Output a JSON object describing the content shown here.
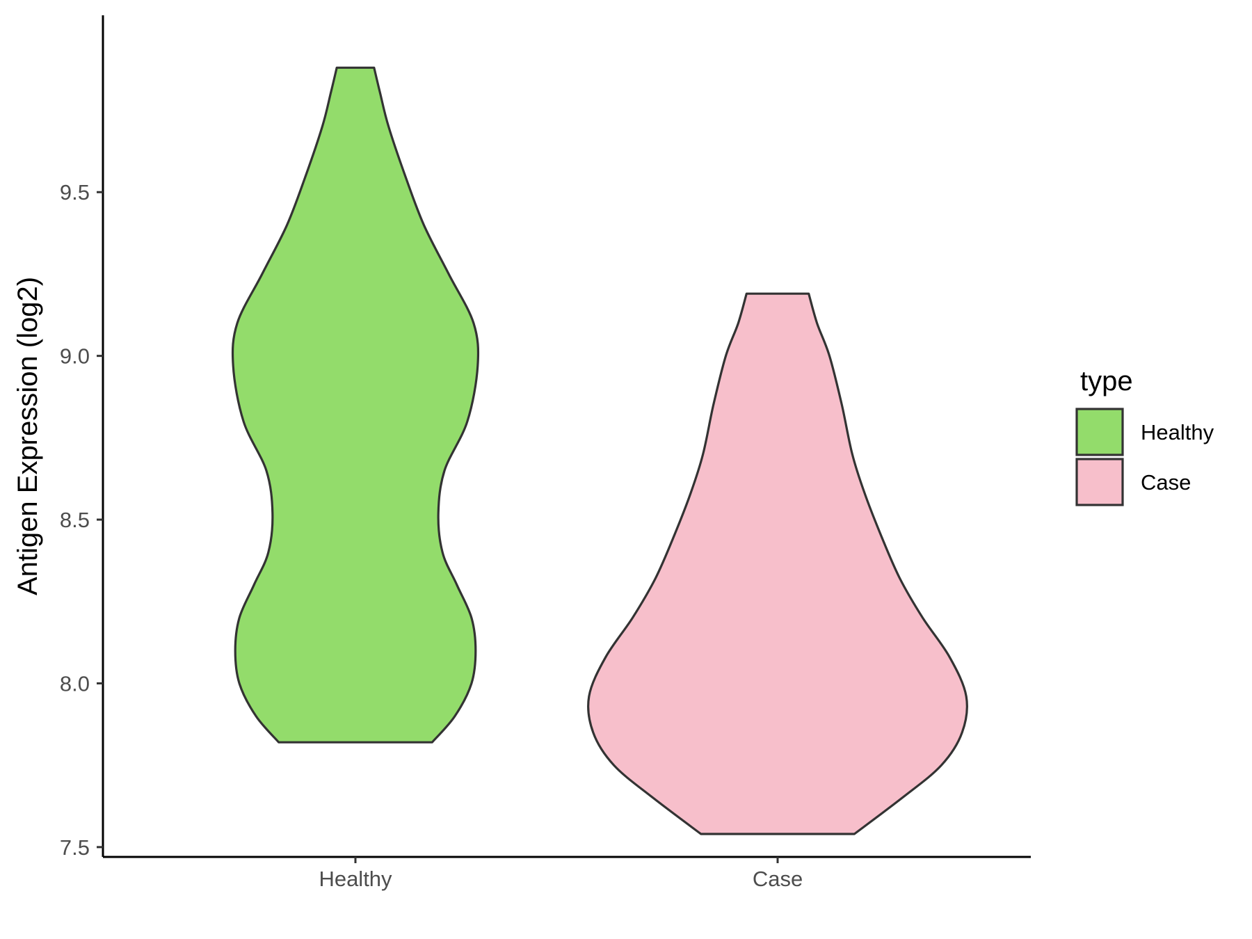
{
  "chart_data": {
    "type": "violin",
    "title": "",
    "xlabel": "",
    "ylabel": "Antigen Expression (log2)",
    "ylim": [
      7.47,
      10.04
    ],
    "yticks": [
      7.5,
      8.0,
      8.5,
      9.0,
      9.5
    ],
    "ytick_labels": [
      "7.5",
      "8.0",
      "8.5",
      "9.0",
      "9.5"
    ],
    "categories": [
      "Healthy",
      "Case"
    ],
    "grid": false,
    "legend": {
      "title": "type",
      "position": "right"
    },
    "series": [
      {
        "name": "Healthy",
        "color": "#93DC6B",
        "min": 7.82,
        "max": 9.88,
        "profile": [
          [
            7.82,
            0.37
          ],
          [
            7.9,
            0.48
          ],
          [
            8.0,
            0.56
          ],
          [
            8.1,
            0.58
          ],
          [
            8.2,
            0.56
          ],
          [
            8.3,
            0.49
          ],
          [
            8.4,
            0.42
          ],
          [
            8.52,
            0.4
          ],
          [
            8.65,
            0.43
          ],
          [
            8.8,
            0.54
          ],
          [
            8.97,
            0.59
          ],
          [
            9.1,
            0.57
          ],
          [
            9.25,
            0.45
          ],
          [
            9.4,
            0.33
          ],
          [
            9.55,
            0.24
          ],
          [
            9.7,
            0.16
          ],
          [
            9.8,
            0.12
          ],
          [
            9.88,
            0.09
          ]
        ]
      },
      {
        "name": "Case",
        "color": "#F7BFCB",
        "min": 7.54,
        "max": 9.19,
        "profile": [
          [
            7.54,
            0.37
          ],
          [
            7.65,
            0.6
          ],
          [
            7.75,
            0.79
          ],
          [
            7.85,
            0.89
          ],
          [
            7.96,
            0.91
          ],
          [
            8.08,
            0.83
          ],
          [
            8.2,
            0.7
          ],
          [
            8.32,
            0.59
          ],
          [
            8.45,
            0.5
          ],
          [
            8.58,
            0.42
          ],
          [
            8.7,
            0.36
          ],
          [
            8.85,
            0.31
          ],
          [
            9.0,
            0.25
          ],
          [
            9.1,
            0.19
          ],
          [
            9.19,
            0.15
          ]
        ]
      }
    ]
  }
}
